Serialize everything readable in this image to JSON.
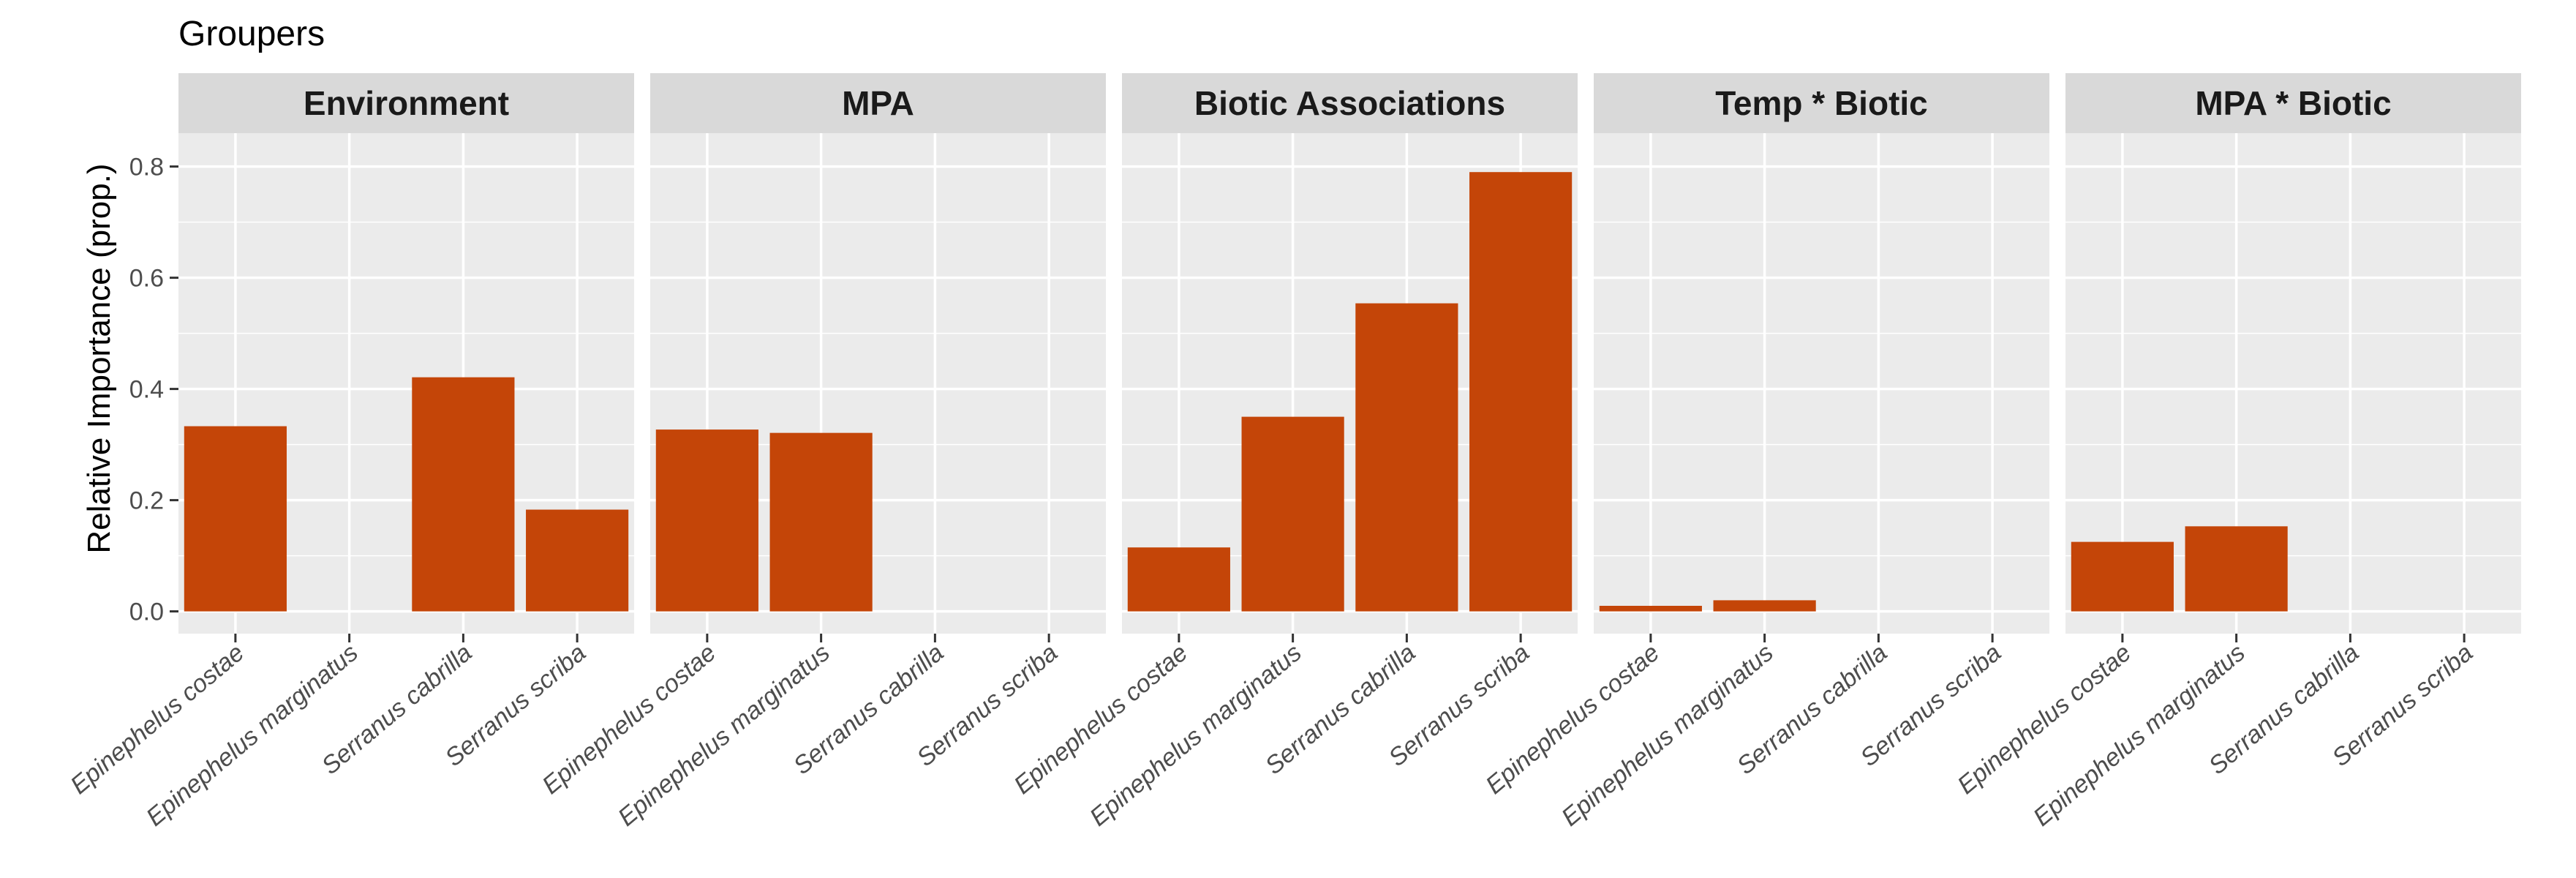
{
  "chart_data": {
    "type": "bar",
    "title": "Groupers",
    "ylabel": "Relative Importance (prop.)",
    "xlabel": "",
    "ylim": [
      -0.04,
      0.86
    ],
    "yticks": [
      0.0,
      0.2,
      0.4,
      0.6,
      0.8
    ],
    "ytick_labels": [
      "0.0",
      "0.2",
      "0.4",
      "0.6",
      "0.8"
    ],
    "categories": [
      "Epinephelus costae",
      "Epinephelus marginatus",
      "Serranus cabrilla",
      "Serranus scriba"
    ],
    "bar_color": "#C44508",
    "panel_background": "#EBEBEB",
    "strip_background": "#D9D9D9",
    "grid": true,
    "panels": [
      {
        "name": "Environment",
        "values": [
          0.333,
          null,
          0.421,
          0.183
        ]
      },
      {
        "name": "MPA",
        "values": [
          0.327,
          0.321,
          null,
          null
        ]
      },
      {
        "name": "Biotic Associations",
        "values": [
          0.115,
          0.35,
          0.554,
          0.79
        ]
      },
      {
        "name": "Temp * Biotic",
        "values": [
          0.01,
          0.02,
          null,
          null
        ]
      },
      {
        "name": "MPA * Biotic",
        "values": [
          0.125,
          0.153,
          null,
          null
        ]
      }
    ]
  }
}
